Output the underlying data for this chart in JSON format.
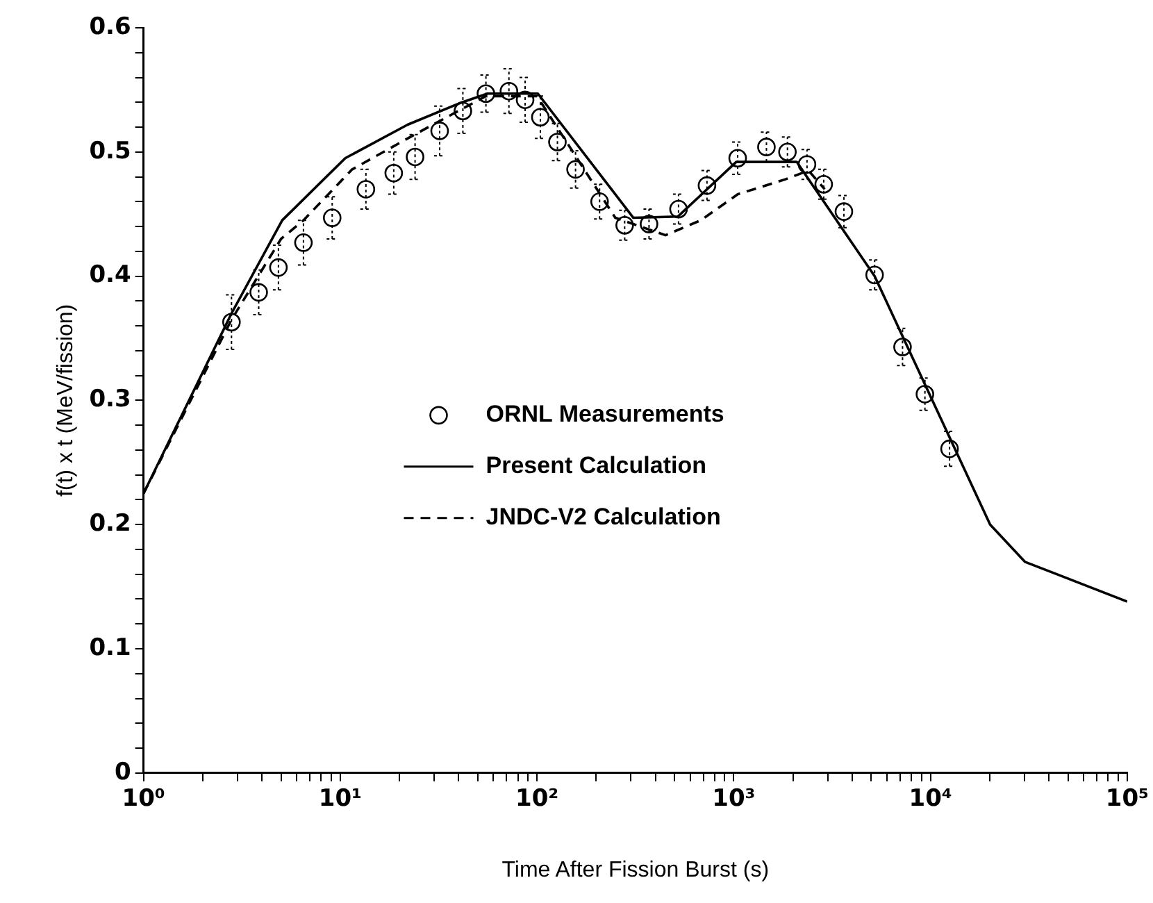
{
  "chart_data": {
    "type": "line",
    "xlabel": "Time After Fission Burst (s)",
    "ylabel": "f(t) x t (MeV/fission)",
    "log": "x",
    "grid": false,
    "legend": "center",
    "xlim": [
      1,
      100000
    ],
    "xticks": [
      {
        "value": 1,
        "label": "10⁰"
      },
      {
        "value": 2,
        "label": null
      },
      {
        "value": 3,
        "label": null
      },
      {
        "value": 4,
        "label": null
      },
      {
        "value": 5,
        "label": null
      },
      {
        "value": 6,
        "label": null
      },
      {
        "value": 7,
        "label": null
      },
      {
        "value": 8,
        "label": null
      },
      {
        "value": 9,
        "label": null
      },
      {
        "value": 10,
        "label": "10¹"
      },
      {
        "value": 20,
        "label": null
      },
      {
        "value": 30,
        "label": null
      },
      {
        "value": 40,
        "label": null
      },
      {
        "value": 50,
        "label": null
      },
      {
        "value": 60,
        "label": null
      },
      {
        "value": 70,
        "label": null
      },
      {
        "value": 80,
        "label": null
      },
      {
        "value": 90,
        "label": null
      },
      {
        "value": 100,
        "label": "10²"
      },
      {
        "value": 200,
        "label": null
      },
      {
        "value": 300,
        "label": null
      },
      {
        "value": 400,
        "label": null
      },
      {
        "value": 500,
        "label": null
      },
      {
        "value": 600,
        "label": null
      },
      {
        "value": 700,
        "label": null
      },
      {
        "value": 800,
        "label": null
      },
      {
        "value": 900,
        "label": null
      },
      {
        "value": 1000,
        "label": "10³"
      },
      {
        "value": 2000,
        "label": null
      },
      {
        "value": 3000,
        "label": null
      },
      {
        "value": 4000,
        "label": null
      },
      {
        "value": 5000,
        "label": null
      },
      {
        "value": 6000,
        "label": null
      },
      {
        "value": 7000,
        "label": null
      },
      {
        "value": 8000,
        "label": null
      },
      {
        "value": 9000,
        "label": null
      },
      {
        "value": 10000,
        "label": "10⁴"
      },
      {
        "value": 20000,
        "label": null
      },
      {
        "value": 30000,
        "label": null
      },
      {
        "value": 40000,
        "label": null
      },
      {
        "value": 50000,
        "label": null
      },
      {
        "value": 60000,
        "label": null
      },
      {
        "value": 70000,
        "label": null
      },
      {
        "value": 80000,
        "label": null
      },
      {
        "value": 90000,
        "label": null
      },
      {
        "value": 100000,
        "label": "10⁵"
      }
    ],
    "ylim": [
      0,
      0.6
    ],
    "yticks": [
      0,
      {
        "value": 0.02,
        "label": null
      },
      {
        "value": 0.04,
        "label": null
      },
      {
        "value": 0.06,
        "label": null
      },
      {
        "value": 0.08,
        "label": null
      },
      0.1,
      {
        "value": 0.12,
        "label": null
      },
      {
        "value": 0.14,
        "label": null
      },
      {
        "value": 0.16,
        "label": null
      },
      {
        "value": 0.18,
        "label": null
      },
      0.2,
      {
        "value": 0.22,
        "label": null
      },
      {
        "value": 0.24,
        "label": null
      },
      {
        "value": 0.26,
        "label": null
      },
      {
        "value": 0.28,
        "label": null
      },
      0.3,
      {
        "value": 0.32,
        "label": null
      },
      {
        "value": 0.34,
        "label": null
      },
      {
        "value": 0.36,
        "label": null
      },
      {
        "value": 0.38,
        "label": null
      },
      0.4,
      {
        "value": 0.42,
        "label": null
      },
      {
        "value": 0.44,
        "label": null
      },
      {
        "value": 0.46,
        "label": null
      },
      {
        "value": 0.48,
        "label": null
      },
      0.5,
      {
        "value": 0.52,
        "label": null
      },
      {
        "value": 0.54,
        "label": null
      },
      {
        "value": 0.56,
        "label": null
      },
      {
        "value": 0.58,
        "label": null
      },
      0.6
    ],
    "series": [
      {
        "type": "scatter",
        "name": "ORNL Measurements",
        "color": "#000000",
        "marker": "circle",
        "x": [
          2.8,
          3.85,
          4.85,
          6.5,
          9.1,
          13.5,
          18.7,
          24,
          32,
          42,
          55,
          72,
          87,
          104,
          127,
          157,
          208,
          279,
          371,
          524,
          731,
          1047,
          1466,
          1875,
          2357,
          2866,
          3630,
          5200,
          7210,
          9370,
          12500
        ],
        "values": [
          0.363,
          0.387,
          0.407,
          0.427,
          0.447,
          0.47,
          0.483,
          0.496,
          0.517,
          0.533,
          0.547,
          0.549,
          0.542,
          0.528,
          0.508,
          0.486,
          0.46,
          0.441,
          0.442,
          0.454,
          0.473,
          0.495,
          0.504,
          0.5,
          0.49,
          0.474,
          0.452,
          0.401,
          0.343,
          0.305,
          0.261
        ],
        "errors": [
          0.022,
          0.018,
          0.018,
          0.018,
          0.017,
          0.016,
          0.017,
          0.018,
          0.02,
          0.018,
          0.015,
          0.018,
          0.018,
          0.017,
          0.015,
          0.015,
          0.014,
          0.012,
          0.012,
          0.012,
          0.012,
          0.013,
          0.012,
          0.012,
          0.012,
          0.012,
          0.013,
          0.012,
          0.015,
          0.013,
          0.014
        ]
      },
      {
        "name": "Present Calculation",
        "color": "#000000",
        "line_style": "solid",
        "x": [
          1,
          2.8,
          5.07,
          10.6,
          22,
          40,
          56,
          101,
          309,
          520,
          1030,
          2090,
          5200,
          20100,
          30200,
          100000
        ],
        "values": [
          0.225,
          0.37,
          0.445,
          0.495,
          0.522,
          0.539,
          0.547,
          0.547,
          0.447,
          0.448,
          0.492,
          0.492,
          0.4,
          0.2,
          0.17,
          0.138
        ]
      },
      {
        "name": "JNDC-V2 Calculation",
        "color": "#000000",
        "line_style": "dashed",
        "x": [
          1,
          2.8,
          5,
          6.5,
          11.5,
          24.5,
          55,
          100,
          250,
          450,
          680,
          1050,
          1830,
          2400,
          2900
        ],
        "values": [
          0.225,
          0.365,
          0.43,
          0.445,
          0.486,
          0.515,
          0.545,
          0.545,
          0.447,
          0.433,
          0.445,
          0.466,
          0.478,
          0.485,
          0.47
        ]
      }
    ]
  }
}
